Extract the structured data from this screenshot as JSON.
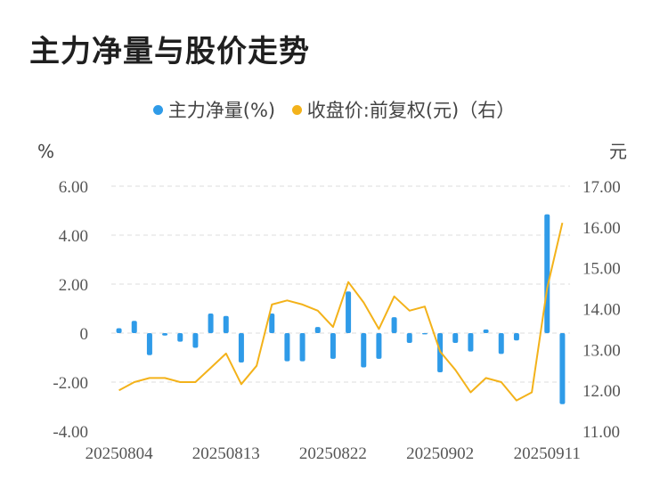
{
  "chart_data": {
    "type": "bar+line",
    "title": "主力净量与股价走势",
    "colors": {
      "bar": "#2f9be8",
      "line": "#f3b21a",
      "grid": "#dddddd"
    },
    "legend": [
      {
        "name": "主力净量(%)",
        "color": "#2f9be8"
      },
      {
        "name": "收盘价:前复权(元)（右）",
        "color": "#f3b21a"
      }
    ],
    "y_left": {
      "unit": "%",
      "ylim": [
        -4,
        6
      ],
      "ticks": [
        6,
        4,
        2,
        0,
        -2,
        -4
      ],
      "tick_labels": [
        "6.00",
        "4.00",
        "2.00",
        "0",
        "-2.00",
        "-4.00"
      ]
    },
    "y_right": {
      "unit": "元",
      "ylim": [
        11,
        17
      ],
      "ticks": [
        17,
        16,
        15,
        14,
        13,
        12,
        11
      ],
      "tick_labels": [
        "17.00",
        "16.00",
        "15.00",
        "14.00",
        "13.00",
        "12.00",
        "11.00"
      ]
    },
    "x_tick_labels": [
      {
        "label": "20250804",
        "index": 0
      },
      {
        "label": "20250813",
        "index": 7
      },
      {
        "label": "20250822",
        "index": 14
      },
      {
        "label": "20250902",
        "index": 21
      },
      {
        "label": "20250911",
        "index": 28
      }
    ],
    "series": [
      {
        "name": "主力净量(%)",
        "kind": "bar",
        "axis": "left",
        "values": [
          0.2,
          0.5,
          -0.9,
          -0.1,
          -0.35,
          -0.6,
          0.8,
          0.7,
          -1.2,
          0.0,
          0.8,
          -1.15,
          -1.15,
          0.25,
          -1.05,
          1.7,
          -1.4,
          -1.05,
          0.65,
          -0.4,
          -0.05,
          -1.6,
          -0.4,
          -0.75,
          0.15,
          -0.85,
          -0.3,
          0.0,
          4.85,
          -2.9
        ]
      },
      {
        "name": "收盘价:前复权(元)（右）",
        "kind": "line",
        "axis": "right",
        "values": [
          12.0,
          12.2,
          12.3,
          12.3,
          12.2,
          12.2,
          12.55,
          12.9,
          12.15,
          12.6,
          14.1,
          14.2,
          14.1,
          13.95,
          13.55,
          14.65,
          14.15,
          13.5,
          14.3,
          13.95,
          14.05,
          12.95,
          12.5,
          11.95,
          12.3,
          12.2,
          11.75,
          11.95,
          14.5,
          16.1
        ]
      }
    ]
  }
}
